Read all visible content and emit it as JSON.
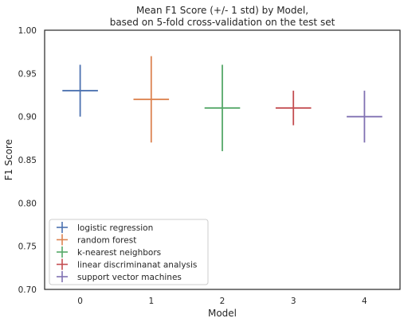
{
  "chart_data": {
    "type": "scatter",
    "title_line1": "Mean F1 Score (+/- 1 std) by Model,",
    "title_line2": "based on 5-fold cross-validation on the test set",
    "xlabel": "Model",
    "ylabel": "F1 Score",
    "xlim": [
      -0.5,
      4.5
    ],
    "ylim": [
      0.7,
      1.0
    ],
    "x_ticks": [
      "0",
      "1",
      "2",
      "3",
      "4"
    ],
    "y_ticks": [
      "0.70",
      "0.75",
      "0.80",
      "0.85",
      "0.90",
      "0.95",
      "1.00"
    ],
    "grid": false,
    "legend_position": "lower-left",
    "series": [
      {
        "name": "logistic regression",
        "x": 0,
        "y": 0.93,
        "std": 0.03,
        "x_halfwidth": 0.25,
        "color": "#4c72b0"
      },
      {
        "name": "random forest",
        "x": 1,
        "y": 0.92,
        "std": 0.05,
        "x_halfwidth": 0.25,
        "color": "#dd8452"
      },
      {
        "name": "k-nearest neighbors",
        "x": 2,
        "y": 0.91,
        "std": 0.05,
        "x_halfwidth": 0.25,
        "color": "#55a868"
      },
      {
        "name": "linear discriminanat analysis",
        "x": 3,
        "y": 0.91,
        "std": 0.02,
        "x_halfwidth": 0.25,
        "color": "#c44e52"
      },
      {
        "name": "support vector machines",
        "x": 4,
        "y": 0.9,
        "std": 0.03,
        "x_halfwidth": 0.25,
        "color": "#8172b3"
      }
    ]
  }
}
